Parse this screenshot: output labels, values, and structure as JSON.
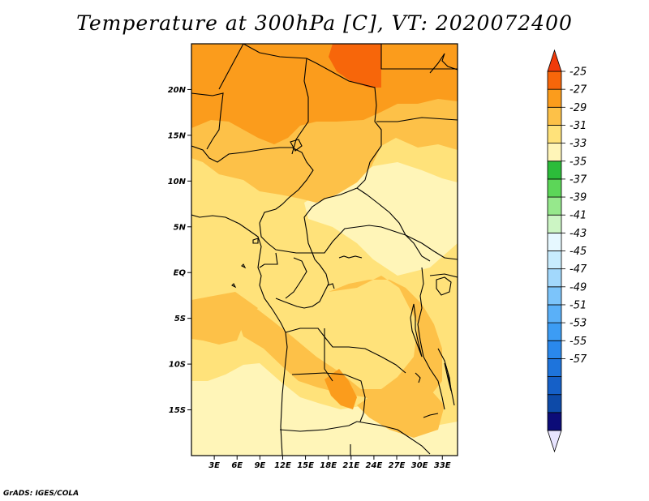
{
  "title": "Temperature at 300hPa [C], VT: 2020072400",
  "credit": "GrADS: IGES/COLA",
  "map": {
    "region": "Central Africa",
    "lat_labels": [
      "20N",
      "15N",
      "10N",
      "5N",
      "EQ",
      "5S",
      "10S",
      "15S"
    ],
    "lon_labels": [
      "3E",
      "6E",
      "9E",
      "12E",
      "15E",
      "18E",
      "21E",
      "24E",
      "27E",
      "30E",
      "33E"
    ]
  },
  "chart_data": {
    "type": "heatmap",
    "title": "Temperature at 300hPa [C], VT: 2020072400",
    "variable": "Temperature",
    "level": "300hPa",
    "units": "C",
    "valid_time": "2020072400",
    "lon_range": [
      0,
      35
    ],
    "lat_range": [
      -20,
      25
    ],
    "colorbar": {
      "labels": [
        "-25",
        "-27",
        "-29",
        "-31",
        "-33",
        "-35",
        "-37",
        "-39",
        "-41",
        "-43",
        "-45",
        "-47",
        "-49",
        "-51",
        "-53",
        "-55",
        "-57"
      ],
      "colors": [
        "#e8e4ff",
        "#0c0c78",
        "#0d4aa8",
        "#1560c8",
        "#1e74dc",
        "#2a88ec",
        "#3c9cf4",
        "#5ab0f8",
        "#7cc4fa",
        "#a2d8fc",
        "#c8ecfe",
        "#e6f8ff",
        "#ccf5c4",
        "#96e88c",
        "#5cd658",
        "#2cbc3a",
        "#fff5b8",
        "#ffe27a",
        "#fdc148",
        "#fb9c1c",
        "#f7660a",
        "#f03a0a"
      ]
    },
    "field_colors": {
      "lightest": "#fff5b8",
      "light": "#ffe27a",
      "mid": "#fdc148",
      "dark": "#fb9c1c",
      "darkest": "#f7660a"
    }
  }
}
